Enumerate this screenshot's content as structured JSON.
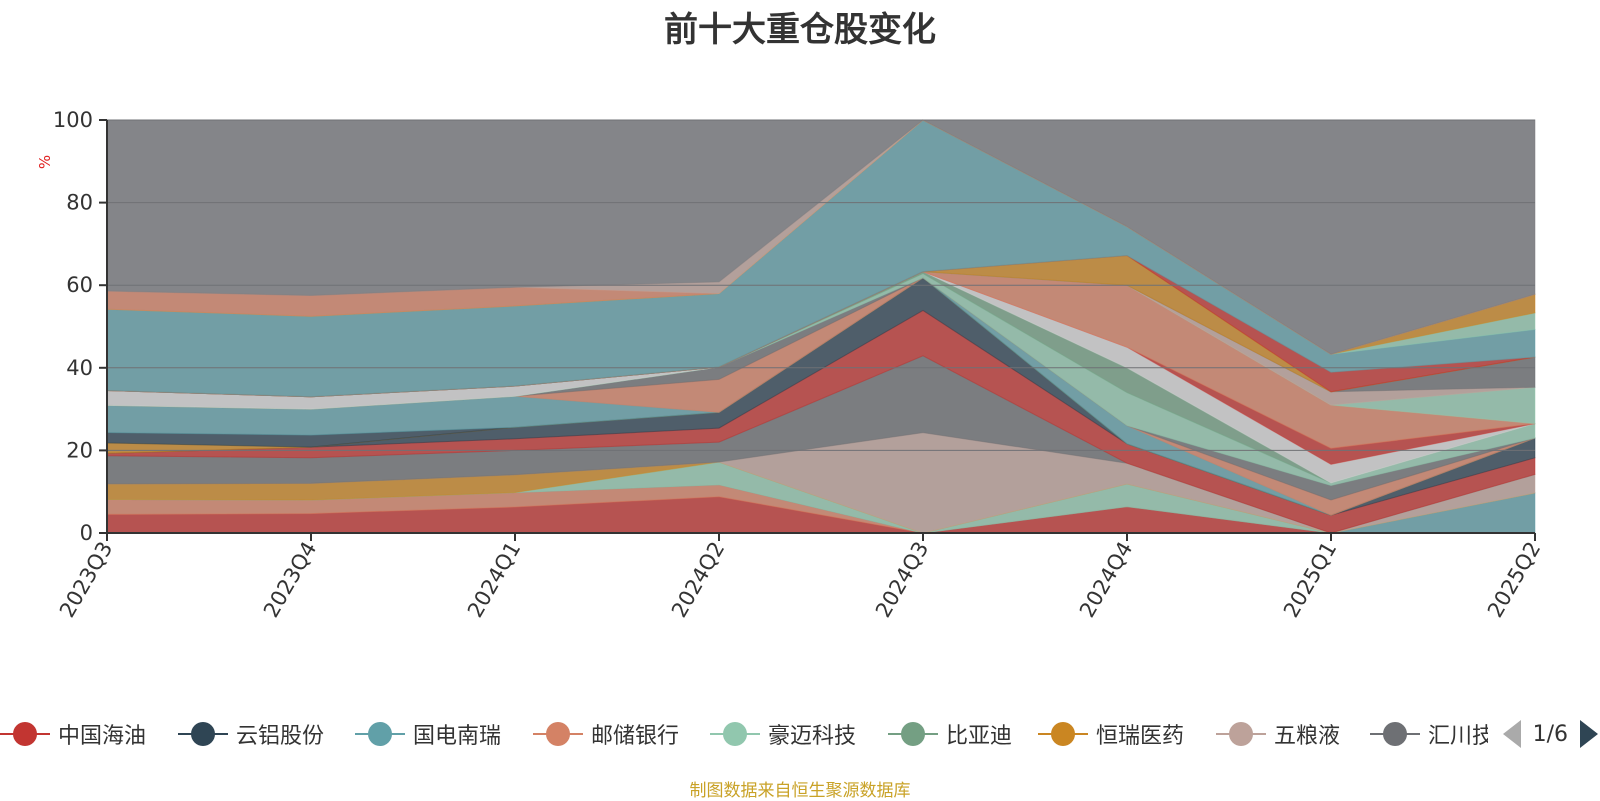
{
  "chart_data": {
    "type": "area",
    "stacked": true,
    "title": "前十大重仓股变化",
    "ylabel": "%",
    "ylim": [
      0,
      100
    ],
    "yticks": [
      0,
      20,
      40,
      60,
      80,
      100
    ],
    "categories": [
      "2023Q3",
      "2023Q4",
      "2024Q1",
      "2024Q2",
      "2024Q3",
      "2024Q4",
      "2025Q1",
      "2025Q2"
    ],
    "grid": true,
    "series": [
      {
        "name": "中国海油",
        "color": "#c23531",
        "values": [
          4.5,
          4.7,
          6.3,
          8.8,
          0,
          6.4,
          0,
          0
        ]
      },
      {
        "name": "",
        "color": "#d48265",
        "values": [
          3.6,
          3.3,
          3.5,
          2.9,
          0,
          0,
          0,
          0
        ]
      },
      {
        "name": "",
        "color": "#61a0a8",
        "values": [
          0,
          0,
          0,
          0,
          0,
          0,
          0,
          9.7
        ]
      },
      {
        "name": "",
        "color": "#91c7ae",
        "values": [
          0,
          0,
          0,
          5.5,
          0,
          5.5,
          0,
          0
        ]
      },
      {
        "name": "",
        "color": "#ca8622",
        "values": [
          3.8,
          4.0,
          4.3,
          0,
          0,
          0,
          0,
          0
        ]
      },
      {
        "name": "",
        "color": "#bda29a",
        "values": [
          0,
          0,
          0,
          0,
          24.3,
          5.0,
          0,
          4.5
        ]
      },
      {
        "name": "",
        "color": "#6e7074",
        "values": [
          6.8,
          6.2,
          5.9,
          4.8,
          18.6,
          0,
          0,
          0
        ]
      },
      {
        "name": "",
        "color": "#c23531",
        "values": [
          0.6,
          2.6,
          2.8,
          3.4,
          11.0,
          4.7,
          4.3,
          4.0
        ]
      },
      {
        "name": "",
        "color": "#2f4554",
        "values": [
          0,
          0,
          2.8,
          3.8,
          7.9,
          0,
          0,
          4.8
        ]
      },
      {
        "name": "",
        "color": "#ca8622",
        "values": [
          2.5,
          0,
          0,
          0,
          0,
          0,
          0,
          0
        ]
      },
      {
        "name": "",
        "color": "#2f4554",
        "values": [
          2.5,
          2.9,
          0,
          0,
          0,
          0,
          0,
          0
        ]
      },
      {
        "name": "",
        "color": "#61a0a8",
        "values": [
          6.6,
          6.3,
          7.5,
          0,
          0,
          4.4,
          0,
          0
        ]
      },
      {
        "name": "",
        "color": "#d48265",
        "values": [
          0,
          0,
          0,
          8.0,
          0,
          0,
          3.7,
          0
        ]
      },
      {
        "name": "",
        "color": "#6e7074",
        "values": [
          0,
          0,
          0,
          3.0,
          0,
          0,
          3.5,
          0
        ]
      },
      {
        "name": "",
        "color": "#91c7ae",
        "values": [
          0,
          0,
          0,
          0,
          1.0,
          8.0,
          0.6,
          3.5
        ]
      },
      {
        "name": "",
        "color": "#749f83",
        "values": [
          0,
          0,
          0,
          0,
          0.5,
          6.0,
          0,
          0
        ]
      },
      {
        "name": "",
        "color": "#d3d3d3",
        "values": [
          3.6,
          3.0,
          2.5,
          0,
          0,
          5.0,
          4.5,
          0
        ]
      },
      {
        "name": "",
        "color": "#c23531",
        "values": [
          0,
          0,
          0,
          0,
          0,
          0,
          3.9,
          0
        ]
      },
      {
        "name": "",
        "color": "#d48265",
        "values": [
          0,
          0,
          0,
          0,
          0,
          15.0,
          10.5,
          0
        ]
      },
      {
        "name": "",
        "color": "#91c7ae",
        "values": [
          0,
          0,
          0,
          0,
          0,
          0,
          0,
          8.8
        ]
      },
      {
        "name": "",
        "color": "#bda29a",
        "values": [
          0,
          0,
          0,
          0,
          0,
          0,
          3.2,
          0
        ]
      },
      {
        "name": "",
        "color": "#6e7074",
        "values": [
          0,
          0,
          0,
          0,
          0,
          0,
          0,
          7.3
        ]
      },
      {
        "name": "",
        "color": "#ca8622",
        "values": [
          0,
          0,
          0,
          0,
          0,
          7.2,
          0,
          0
        ]
      },
      {
        "name": "",
        "color": "#c23531",
        "values": [
          0,
          0,
          0,
          0,
          0,
          0,
          4.7,
          0
        ]
      },
      {
        "name": "",
        "color": "#61a0a8",
        "values": [
          19.7,
          19.5,
          19.4,
          17.8,
          36.7,
          7.0,
          4.4,
          6.7
        ]
      },
      {
        "name": "",
        "color": "#91c7ae",
        "values": [
          0,
          0,
          0,
          0,
          0,
          0,
          0,
          4.0
        ]
      },
      {
        "name": "",
        "color": "#ca8622",
        "values": [
          0,
          0,
          0,
          0,
          0,
          0,
          0,
          4.5
        ]
      },
      {
        "name": "",
        "color": "#d48265",
        "values": [
          4.4,
          5.0,
          4.5,
          0,
          0,
          0,
          0,
          0
        ]
      },
      {
        "name": "",
        "color": "#bda29a",
        "values": [
          0,
          0,
          0,
          2.8,
          0,
          0,
          0,
          0
        ]
      },
      {
        "name": "",
        "color": "#7a7c80",
        "values": [
          41.4,
          42.5,
          40.5,
          39.2,
          0,
          25.8,
          56.7,
          42.2
        ]
      }
    ]
  },
  "legend": {
    "items": [
      {
        "label": "中国海油",
        "color": "#c23531"
      },
      {
        "label": "云铝股份",
        "color": "#2f4554"
      },
      {
        "label": "国电南瑞",
        "color": "#61a0a8"
      },
      {
        "label": "邮储银行",
        "color": "#d48265"
      },
      {
        "label": "豪迈科技",
        "color": "#91c7ae"
      },
      {
        "label": "比亚迪",
        "color": "#749f83"
      },
      {
        "label": "恒瑞医药",
        "color": "#ca8622"
      },
      {
        "label": "五粮液",
        "color": "#bda29a"
      },
      {
        "label": "汇川技术",
        "color": "#6e7074"
      }
    ],
    "page": "1/6"
  },
  "source_note": "制图数据来自恒生聚源数据库"
}
